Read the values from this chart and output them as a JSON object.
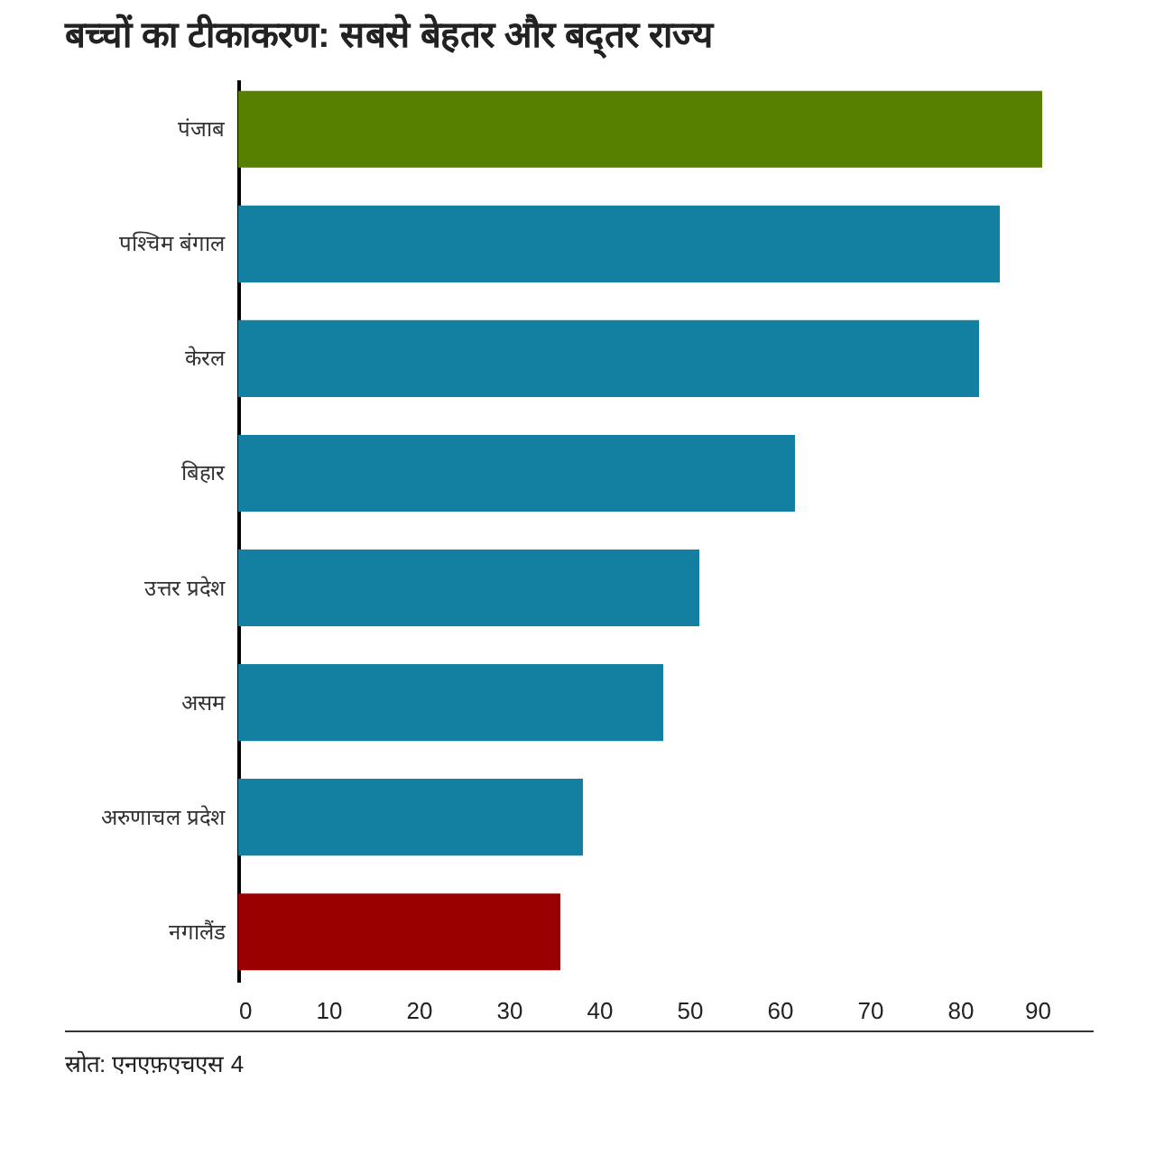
{
  "chart_data": {
    "type": "bar",
    "orientation": "horizontal",
    "title": "बच्चों का टीकाकरण: सबसे बेहतर और बद्तर राज्य",
    "categories": [
      "पंजाब",
      "पश्चिम बंगाल",
      "केरल",
      "बिहार",
      "उत्तर प्रदेश",
      "असम",
      "अरुणाचल प्रदेश",
      "नगालैंड"
    ],
    "values": [
      89.1,
      84.4,
      82.1,
      61.7,
      51.1,
      47.1,
      38.2,
      35.7
    ],
    "colors": [
      "#588000",
      "#1380a1",
      "#1380a1",
      "#1380a1",
      "#1380a1",
      "#1380a1",
      "#1380a1",
      "#990000"
    ],
    "xlim": [
      0,
      90
    ],
    "xticks": [
      0,
      10,
      20,
      30,
      40,
      50,
      60,
      70,
      80,
      90
    ],
    "grid": false,
    "legend": false,
    "annotations": [
      "स्रोत: एनएफ़एचएस 4"
    ]
  }
}
